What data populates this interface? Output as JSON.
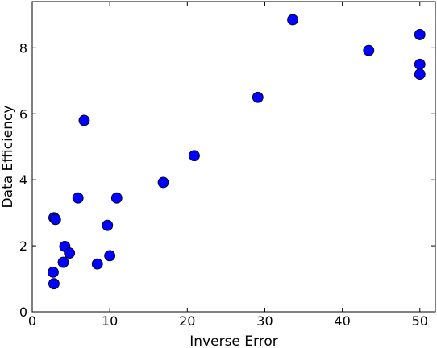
{
  "chart_data": {
    "type": "scatter",
    "title": "",
    "xlabel": "Inverse Error",
    "ylabel": "Data Efficiency",
    "xlim": [
      0,
      52
    ],
    "ylim": [
      0,
      9.4
    ],
    "xticks": [
      0,
      10,
      20,
      30,
      40,
      50
    ],
    "yticks": [
      0,
      2,
      4,
      6,
      8
    ],
    "grid": false,
    "marker_color": "#0000ff",
    "marker_edge_color": "#000000",
    "points": [
      {
        "x": 2.7,
        "y": 1.2
      },
      {
        "x": 2.8,
        "y": 0.85
      },
      {
        "x": 2.8,
        "y": 2.85
      },
      {
        "x": 3.0,
        "y": 2.8
      },
      {
        "x": 4.0,
        "y": 1.5
      },
      {
        "x": 4.2,
        "y": 1.98
      },
      {
        "x": 4.8,
        "y": 1.78
      },
      {
        "x": 5.9,
        "y": 3.45
      },
      {
        "x": 6.7,
        "y": 5.8
      },
      {
        "x": 8.4,
        "y": 1.45
      },
      {
        "x": 9.7,
        "y": 2.62
      },
      {
        "x": 10.0,
        "y": 1.7
      },
      {
        "x": 10.9,
        "y": 3.45
      },
      {
        "x": 16.9,
        "y": 3.92
      },
      {
        "x": 20.9,
        "y": 4.73
      },
      {
        "x": 29.1,
        "y": 6.5
      },
      {
        "x": 33.6,
        "y": 8.85
      },
      {
        "x": 43.4,
        "y": 7.92
      },
      {
        "x": 50.0,
        "y": 8.4
      },
      {
        "x": 50.0,
        "y": 7.5
      },
      {
        "x": 50.0,
        "y": 7.2
      }
    ]
  }
}
